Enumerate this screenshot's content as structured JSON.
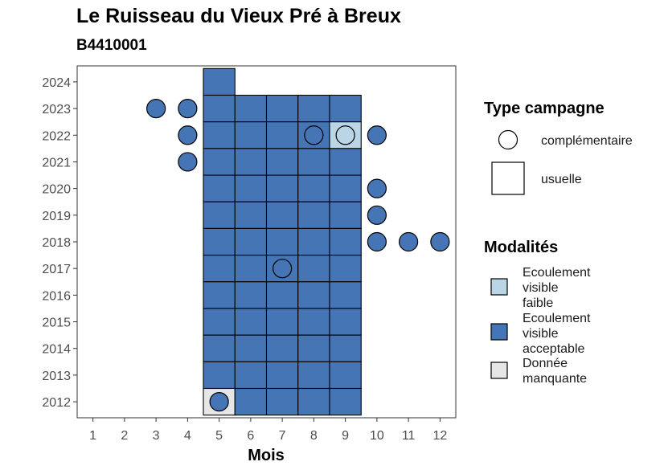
{
  "chart_data": {
    "type": "heatmap",
    "title": "Le Ruisseau du Vieux Pré à Breux",
    "subtitle": "B4410001",
    "xlabel": "Mois",
    "ylabel": "",
    "x_ticks": [
      1,
      2,
      3,
      4,
      5,
      6,
      7,
      8,
      9,
      10,
      11,
      12
    ],
    "y_ticks": [
      2012,
      2013,
      2014,
      2015,
      2016,
      2017,
      2018,
      2019,
      2020,
      2021,
      2022,
      2023,
      2024
    ],
    "xlim": [
      0.5,
      12.5
    ],
    "ylim": [
      2011.4,
      2024.6
    ],
    "colors": {
      "acceptable": "#4575b4",
      "faible": "#bad6e6",
      "manquante": "#e6e6e6"
    },
    "cells_usuelle": [
      {
        "month": 5,
        "year": 2024,
        "modalite": "acceptable"
      },
      {
        "month": 5,
        "year": 2023,
        "modalite": "acceptable"
      },
      {
        "month": 6,
        "year": 2023,
        "modalite": "acceptable"
      },
      {
        "month": 7,
        "year": 2023,
        "modalite": "acceptable"
      },
      {
        "month": 8,
        "year": 2023,
        "modalite": "acceptable"
      },
      {
        "month": 9,
        "year": 2023,
        "modalite": "acceptable"
      },
      {
        "month": 5,
        "year": 2022,
        "modalite": "acceptable"
      },
      {
        "month": 6,
        "year": 2022,
        "modalite": "acceptable"
      },
      {
        "month": 7,
        "year": 2022,
        "modalite": "acceptable"
      },
      {
        "month": 8,
        "year": 2022,
        "modalite": "acceptable"
      },
      {
        "month": 9,
        "year": 2022,
        "modalite": "faible"
      },
      {
        "month": 5,
        "year": 2021,
        "modalite": "acceptable"
      },
      {
        "month": 6,
        "year": 2021,
        "modalite": "acceptable"
      },
      {
        "month": 7,
        "year": 2021,
        "modalite": "acceptable"
      },
      {
        "month": 8,
        "year": 2021,
        "modalite": "acceptable"
      },
      {
        "month": 9,
        "year": 2021,
        "modalite": "acceptable"
      },
      {
        "month": 5,
        "year": 2020,
        "modalite": "acceptable"
      },
      {
        "month": 6,
        "year": 2020,
        "modalite": "acceptable"
      },
      {
        "month": 7,
        "year": 2020,
        "modalite": "acceptable"
      },
      {
        "month": 8,
        "year": 2020,
        "modalite": "acceptable"
      },
      {
        "month": 9,
        "year": 2020,
        "modalite": "acceptable"
      },
      {
        "month": 5,
        "year": 2019,
        "modalite": "acceptable"
      },
      {
        "month": 6,
        "year": 2019,
        "modalite": "acceptable"
      },
      {
        "month": 7,
        "year": 2019,
        "modalite": "acceptable"
      },
      {
        "month": 8,
        "year": 2019,
        "modalite": "acceptable"
      },
      {
        "month": 9,
        "year": 2019,
        "modalite": "acceptable"
      },
      {
        "month": 5,
        "year": 2018,
        "modalite": "acceptable"
      },
      {
        "month": 6,
        "year": 2018,
        "modalite": "acceptable"
      },
      {
        "month": 7,
        "year": 2018,
        "modalite": "acceptable"
      },
      {
        "month": 8,
        "year": 2018,
        "modalite": "acceptable"
      },
      {
        "month": 9,
        "year": 2018,
        "modalite": "acceptable"
      },
      {
        "month": 5,
        "year": 2017,
        "modalite": "acceptable"
      },
      {
        "month": 6,
        "year": 2017,
        "modalite": "acceptable"
      },
      {
        "month": 7,
        "year": 2017,
        "modalite": "acceptable"
      },
      {
        "month": 8,
        "year": 2017,
        "modalite": "acceptable"
      },
      {
        "month": 9,
        "year": 2017,
        "modalite": "acceptable"
      },
      {
        "month": 5,
        "year": 2016,
        "modalite": "acceptable"
      },
      {
        "month": 6,
        "year": 2016,
        "modalite": "acceptable"
      },
      {
        "month": 7,
        "year": 2016,
        "modalite": "acceptable"
      },
      {
        "month": 8,
        "year": 2016,
        "modalite": "acceptable"
      },
      {
        "month": 9,
        "year": 2016,
        "modalite": "acceptable"
      },
      {
        "month": 5,
        "year": 2015,
        "modalite": "acceptable"
      },
      {
        "month": 6,
        "year": 2015,
        "modalite": "acceptable"
      },
      {
        "month": 7,
        "year": 2015,
        "modalite": "acceptable"
      },
      {
        "month": 8,
        "year": 2015,
        "modalite": "acceptable"
      },
      {
        "month": 9,
        "year": 2015,
        "modalite": "acceptable"
      },
      {
        "month": 5,
        "year": 2014,
        "modalite": "acceptable"
      },
      {
        "month": 6,
        "year": 2014,
        "modalite": "acceptable"
      },
      {
        "month": 7,
        "year": 2014,
        "modalite": "acceptable"
      },
      {
        "month": 8,
        "year": 2014,
        "modalite": "acceptable"
      },
      {
        "month": 9,
        "year": 2014,
        "modalite": "acceptable"
      },
      {
        "month": 5,
        "year": 2013,
        "modalite": "acceptable"
      },
      {
        "month": 6,
        "year": 2013,
        "modalite": "acceptable"
      },
      {
        "month": 7,
        "year": 2013,
        "modalite": "acceptable"
      },
      {
        "month": 8,
        "year": 2013,
        "modalite": "acceptable"
      },
      {
        "month": 9,
        "year": 2013,
        "modalite": "acceptable"
      },
      {
        "month": 5,
        "year": 2012,
        "modalite": "manquante"
      },
      {
        "month": 6,
        "year": 2012,
        "modalite": "acceptable"
      },
      {
        "month": 7,
        "year": 2012,
        "modalite": "acceptable"
      },
      {
        "month": 8,
        "year": 2012,
        "modalite": "acceptable"
      },
      {
        "month": 9,
        "year": 2012,
        "modalite": "acceptable"
      }
    ],
    "points_complementaire": [
      {
        "month": 3,
        "year": 2023,
        "modalite": "acceptable"
      },
      {
        "month": 4,
        "year": 2023,
        "modalite": "acceptable"
      },
      {
        "month": 4,
        "year": 2022,
        "modalite": "acceptable"
      },
      {
        "month": 8,
        "year": 2022,
        "modalite": "acceptable"
      },
      {
        "month": 9,
        "year": 2022,
        "modalite": "faible"
      },
      {
        "month": 10,
        "year": 2022,
        "modalite": "acceptable"
      },
      {
        "month": 4,
        "year": 2021,
        "modalite": "acceptable"
      },
      {
        "month": 10,
        "year": 2020,
        "modalite": "acceptable"
      },
      {
        "month": 10,
        "year": 2019,
        "modalite": "acceptable"
      },
      {
        "month": 10,
        "year": 2018,
        "modalite": "acceptable"
      },
      {
        "month": 11,
        "year": 2018,
        "modalite": "acceptable"
      },
      {
        "month": 12,
        "year": 2018,
        "modalite": "acceptable"
      },
      {
        "month": 7,
        "year": 2017,
        "modalite": "acceptable"
      },
      {
        "month": 5,
        "year": 2012,
        "modalite": "acceptable"
      }
    ],
    "legend": {
      "placement": "right",
      "type_title": "Type campagne",
      "type_items": [
        {
          "key": "complementaire",
          "label": "complémentaire",
          "shape": "circle"
        },
        {
          "key": "usuelle",
          "label": "usuelle",
          "shape": "square"
        }
      ],
      "mod_title": "Modalités",
      "mod_items": [
        {
          "key": "faible",
          "lines": [
            "Ecoulement",
            "visible",
            "faible"
          ]
        },
        {
          "key": "acceptable",
          "lines": [
            "Ecoulement",
            "visible",
            "acceptable"
          ]
        },
        {
          "key": "manquante",
          "lines": [
            "Donnée",
            "manquante"
          ]
        }
      ]
    }
  }
}
